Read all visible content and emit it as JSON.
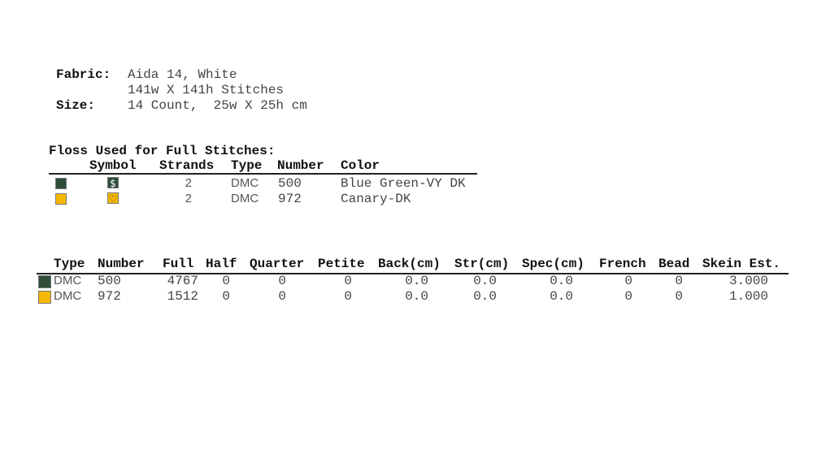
{
  "info": {
    "fabric_label": "Fabric:",
    "fabric_value": "Aida 14, White",
    "stitches": "141w X 141h Stitches",
    "size_label": "Size:",
    "size_value": "14 Count,  25w X 25h cm"
  },
  "floss": {
    "title": "Floss Used for Full Stitches:",
    "headers": [
      "Symbol",
      "Strands",
      "Type",
      "Number",
      "Color"
    ],
    "rows": [
      {
        "swatch_color": "#2e4d3a",
        "symbol": "$",
        "symbol_icon": "dollar-icon",
        "strands": "2",
        "type": "DMC",
        "number": "500",
        "color": "Blue Green-VY DK"
      },
      {
        "swatch_color": "#f5b800",
        "symbol": "♡",
        "symbol_icon": "heart-icon",
        "strands": "2",
        "type": "DMC",
        "number": "972",
        "color": "Canary-DK"
      }
    ]
  },
  "usage": {
    "headers": [
      "Type",
      "Number",
      "Full",
      "Half",
      "Quarter",
      "Petite",
      "Back(cm)",
      "Str(cm)",
      "Spec(cm)",
      "French",
      "Bead",
      "Skein Est."
    ],
    "rows": [
      {
        "swatch_color": "#2e4d3a",
        "cells": [
          "DMC",
          "500",
          "4767",
          "0",
          "0",
          "0",
          "0.0",
          "0.0",
          "0.0",
          "0",
          "0",
          "3.000"
        ]
      },
      {
        "swatch_color": "#f5b800",
        "cells": [
          "DMC",
          "972",
          "1512",
          "0",
          "0",
          "0",
          "0.0",
          "0.0",
          "0.0",
          "0",
          "0",
          "1.000"
        ]
      }
    ]
  }
}
